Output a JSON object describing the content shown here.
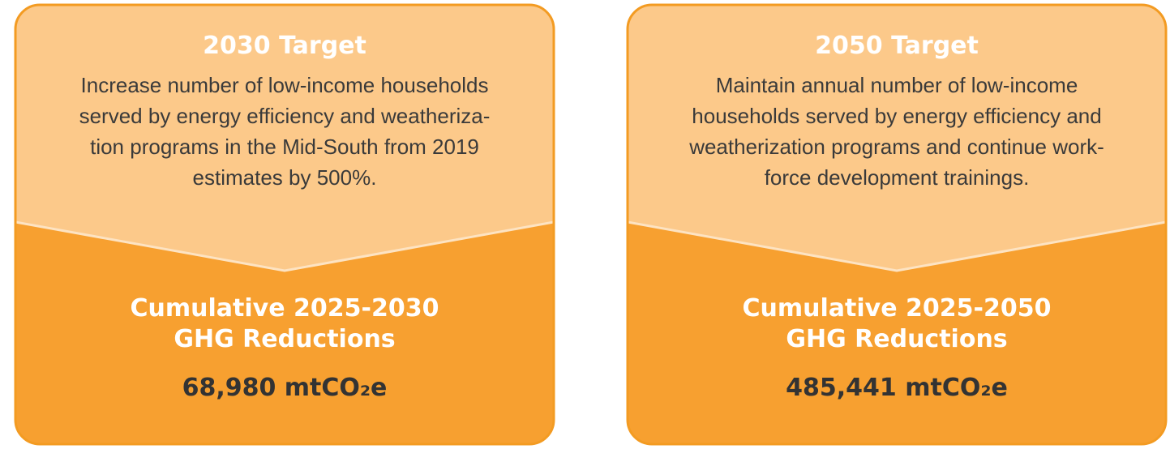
{
  "cards": [
    {
      "title": "2030 Target",
      "description": [
        "Increase number of low-income households",
        "served by energy efficiency and weatheriza-",
        "tion programs in the Mid-South from 2019",
        "estimates by 500%."
      ],
      "reduction_title": [
        "Cumulative 2025-2030",
        "GHG Reductions"
      ],
      "reduction_value": "68,980 mtCO₂e"
    },
    {
      "title": "2050 Target",
      "description": [
        "Maintain annual number of low-income",
        "households served by energy efficiency and",
        "weatherization programs and continue work-",
        "force development trainings."
      ],
      "reduction_title": [
        "Cumulative 2025-2050",
        "GHG Reductions"
      ],
      "reduction_value": "485,441 mtCO₂e"
    }
  ]
}
